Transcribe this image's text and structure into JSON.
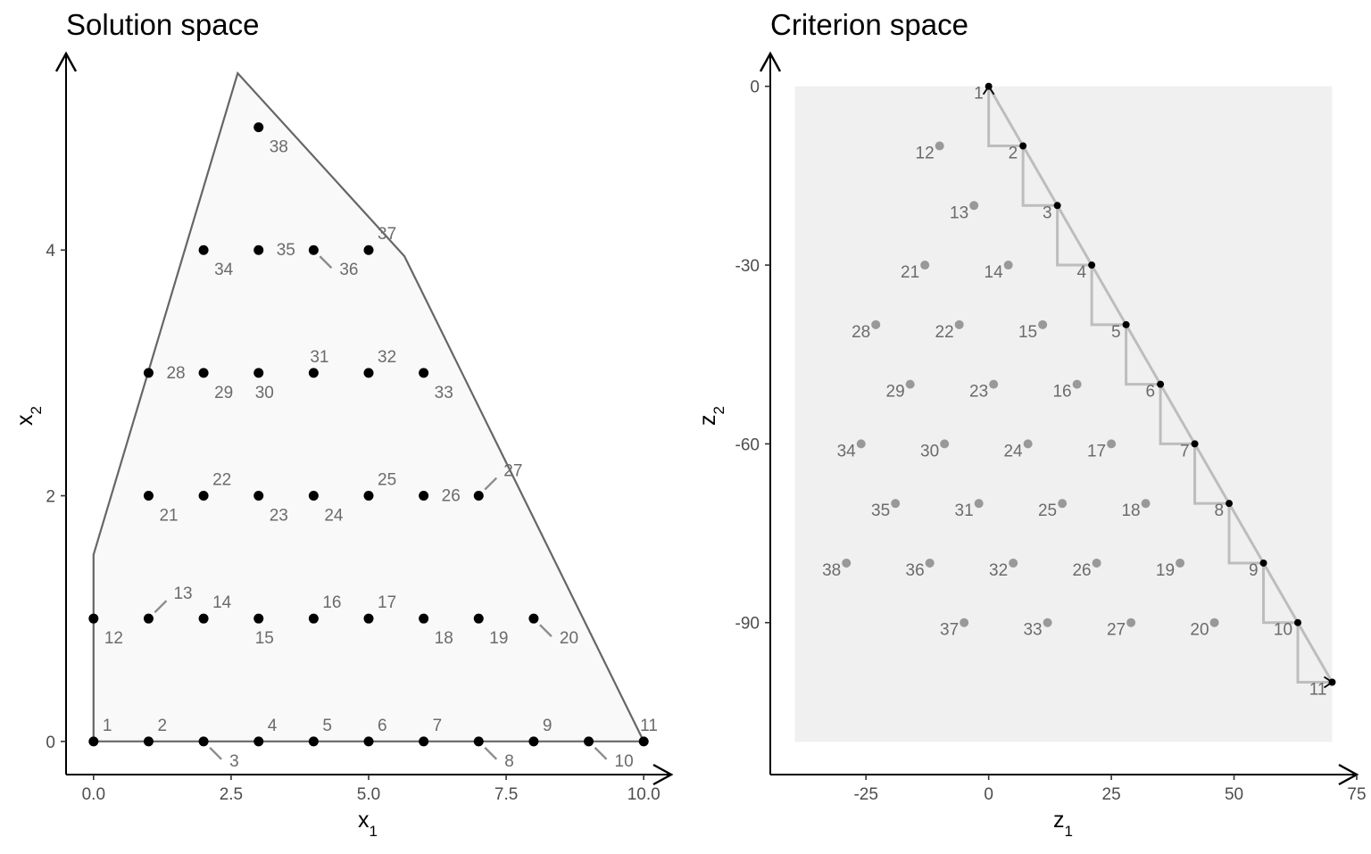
{
  "chart_data": [
    {
      "type": "scatter",
      "title": "Solution space",
      "xlabel": "x",
      "xlabel_sub": "1",
      "ylabel": "x",
      "ylabel_sub": "2",
      "xlim": [
        -0.5,
        10.5
      ],
      "ylim": [
        -0.27,
        5.6
      ],
      "x_ticks": [
        0,
        2.5,
        5,
        7.5,
        10
      ],
      "x_tick_labels": [
        "0.0",
        "2.5",
        "5.0",
        "7.5",
        "10.0"
      ],
      "y_ticks": [
        0,
        2,
        4
      ],
      "y_tick_labels": [
        "0",
        "2",
        "4"
      ],
      "grid": false,
      "feasible_region": [
        [
          0,
          0
        ],
        [
          10,
          0
        ],
        [
          5.65,
          3.95
        ],
        [
          2.62,
          5.44
        ],
        [
          0,
          1.52
        ]
      ],
      "colors": {
        "region_fill": "#f9f9f9",
        "region_stroke": "#666666",
        "point": "#000000",
        "label": "#6b6b6b",
        "leader": "#8c8c8c"
      },
      "points": [
        {
          "id": "1",
          "x": 0,
          "y": 0,
          "pos": "ne"
        },
        {
          "id": "2",
          "x": 1,
          "y": 0,
          "pos": "ne"
        },
        {
          "id": "3",
          "x": 2,
          "y": 0,
          "pos": "se",
          "leader": true
        },
        {
          "id": "4",
          "x": 3,
          "y": 0,
          "pos": "ne"
        },
        {
          "id": "5",
          "x": 4,
          "y": 0,
          "pos": "ne"
        },
        {
          "id": "6",
          "x": 5,
          "y": 0,
          "pos": "ne"
        },
        {
          "id": "7",
          "x": 6,
          "y": 0,
          "pos": "ne"
        },
        {
          "id": "8",
          "x": 7,
          "y": 0,
          "pos": "se",
          "leader": true
        },
        {
          "id": "9",
          "x": 8,
          "y": 0,
          "pos": "ne"
        },
        {
          "id": "10",
          "x": 9,
          "y": 0,
          "pos": "se",
          "leader": true
        },
        {
          "id": "11",
          "x": 10,
          "y": 0,
          "pos": "n"
        },
        {
          "id": "12",
          "x": 0,
          "y": 1,
          "pos": "se"
        },
        {
          "id": "13",
          "x": 1,
          "y": 1,
          "pos": "ne",
          "leader": true
        },
        {
          "id": "14",
          "x": 2,
          "y": 1,
          "pos": "ne"
        },
        {
          "id": "15",
          "x": 3,
          "y": 1,
          "pos": "s"
        },
        {
          "id": "16",
          "x": 4,
          "y": 1,
          "pos": "ne"
        },
        {
          "id": "17",
          "x": 5,
          "y": 1,
          "pos": "ne"
        },
        {
          "id": "18",
          "x": 6,
          "y": 1,
          "pos": "se"
        },
        {
          "id": "19",
          "x": 7,
          "y": 1,
          "pos": "se"
        },
        {
          "id": "20",
          "x": 8,
          "y": 1,
          "pos": "se",
          "leader": true
        },
        {
          "id": "21",
          "x": 1,
          "y": 2,
          "pos": "se"
        },
        {
          "id": "22",
          "x": 2,
          "y": 2,
          "pos": "ne"
        },
        {
          "id": "23",
          "x": 3,
          "y": 2,
          "pos": "se"
        },
        {
          "id": "24",
          "x": 4,
          "y": 2,
          "pos": "se"
        },
        {
          "id": "25",
          "x": 5,
          "y": 2,
          "pos": "ne"
        },
        {
          "id": "26",
          "x": 6,
          "y": 2,
          "pos": "e"
        },
        {
          "id": "27",
          "x": 7,
          "y": 2,
          "pos": "ne",
          "leader": true
        },
        {
          "id": "28",
          "x": 1,
          "y": 3,
          "pos": "e"
        },
        {
          "id": "29",
          "x": 2,
          "y": 3,
          "pos": "se"
        },
        {
          "id": "30",
          "x": 3,
          "y": 3,
          "pos": "s"
        },
        {
          "id": "31",
          "x": 4,
          "y": 3,
          "pos": "n"
        },
        {
          "id": "32",
          "x": 5,
          "y": 3,
          "pos": "ne"
        },
        {
          "id": "33",
          "x": 6,
          "y": 3,
          "pos": "se"
        },
        {
          "id": "34",
          "x": 2,
          "y": 4,
          "pos": "se"
        },
        {
          "id": "35",
          "x": 3,
          "y": 4,
          "pos": "e"
        },
        {
          "id": "36",
          "x": 4,
          "y": 4,
          "pos": "se",
          "leader": true
        },
        {
          "id": "37",
          "x": 5,
          "y": 4,
          "pos": "ne"
        },
        {
          "id": "38",
          "x": 3,
          "y": 5,
          "pos": "se"
        }
      ]
    },
    {
      "type": "scatter",
      "title": "Criterion space",
      "xlabel": "z",
      "xlabel_sub": "1",
      "ylabel": "z",
      "ylabel_sub": "2",
      "xlim": [
        -44.5,
        75
      ],
      "ylim": [
        -115.5,
        5.5
      ],
      "x_ticks": [
        -25,
        0,
        25,
        50,
        75
      ],
      "x_tick_labels": [
        "-25",
        "0",
        "25",
        "50",
        "75"
      ],
      "y_ticks": [
        0,
        -30,
        -60,
        -90
      ],
      "y_tick_labels": [
        "0",
        "-30",
        "-60",
        "-90"
      ],
      "grid": false,
      "background_region": [
        [
          -39.5,
          0
        ],
        [
          70,
          0
        ],
        [
          70,
          -110
        ],
        [
          -39.5,
          -110
        ]
      ],
      "nondominated_path": [
        [
          0,
          0
        ],
        [
          7,
          -10
        ],
        [
          14,
          -20
        ],
        [
          21,
          -30
        ],
        [
          28,
          -40
        ],
        [
          35,
          -50
        ],
        [
          42,
          -60
        ],
        [
          49,
          -70
        ],
        [
          56,
          -80
        ],
        [
          63,
          -90
        ],
        [
          70,
          -100
        ]
      ],
      "colors": {
        "region_fill": "#f0f0f0",
        "step_line": "#bdbdbd",
        "nd_point": "#000000",
        "dominated_point": "#999999",
        "label": "#6b6b6b"
      },
      "points": [
        {
          "id": "1",
          "x": 0,
          "y": 0,
          "nd": true
        },
        {
          "id": "2",
          "x": 7,
          "y": -10,
          "nd": true
        },
        {
          "id": "3",
          "x": 14,
          "y": -20,
          "nd": true
        },
        {
          "id": "4",
          "x": 21,
          "y": -30,
          "nd": true
        },
        {
          "id": "5",
          "x": 28,
          "y": -40,
          "nd": true
        },
        {
          "id": "6",
          "x": 35,
          "y": -50,
          "nd": true
        },
        {
          "id": "7",
          "x": 42,
          "y": -60,
          "nd": true
        },
        {
          "id": "8",
          "x": 49,
          "y": -70,
          "nd": true
        },
        {
          "id": "9",
          "x": 56,
          "y": -80,
          "nd": true
        },
        {
          "id": "10",
          "x": 63,
          "y": -90,
          "nd": true
        },
        {
          "id": "11",
          "x": 70,
          "y": -100,
          "nd": true
        },
        {
          "id": "12",
          "x": -10,
          "y": -10
        },
        {
          "id": "13",
          "x": -3,
          "y": -20
        },
        {
          "id": "14",
          "x": 4,
          "y": -30
        },
        {
          "id": "15",
          "x": 11,
          "y": -40
        },
        {
          "id": "16",
          "x": 18,
          "y": -50
        },
        {
          "id": "17",
          "x": 25,
          "y": -60
        },
        {
          "id": "18",
          "x": 32,
          "y": -70
        },
        {
          "id": "19",
          "x": 39,
          "y": -80
        },
        {
          "id": "20",
          "x": 46,
          "y": -90
        },
        {
          "id": "21",
          "x": -13,
          "y": -30
        },
        {
          "id": "22",
          "x": -6,
          "y": -40
        },
        {
          "id": "23",
          "x": 1,
          "y": -50
        },
        {
          "id": "24",
          "x": 8,
          "y": -60
        },
        {
          "id": "25",
          "x": 15,
          "y": -70
        },
        {
          "id": "26",
          "x": 22,
          "y": -80
        },
        {
          "id": "27",
          "x": 29,
          "y": -90
        },
        {
          "id": "28",
          "x": -23,
          "y": -40
        },
        {
          "id": "29",
          "x": -16,
          "y": -50
        },
        {
          "id": "30",
          "x": -9,
          "y": -60
        },
        {
          "id": "31",
          "x": -2,
          "y": -70
        },
        {
          "id": "32",
          "x": 5,
          "y": -80
        },
        {
          "id": "33",
          "x": 12,
          "y": -90
        },
        {
          "id": "34",
          "x": -26,
          "y": -60
        },
        {
          "id": "35",
          "x": -19,
          "y": -70
        },
        {
          "id": "36",
          "x": -12,
          "y": -80
        },
        {
          "id": "37",
          "x": -5,
          "y": -90
        },
        {
          "id": "38",
          "x": -29,
          "y": -80
        }
      ]
    }
  ]
}
